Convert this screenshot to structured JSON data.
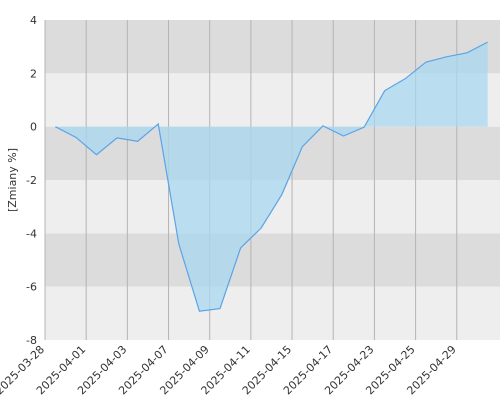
{
  "chart_data": {
    "type": "area",
    "y_label": "[Zmiany %]",
    "x": [
      0,
      1,
      2,
      3,
      4,
      5,
      6,
      7,
      8,
      9,
      10,
      11,
      12,
      13,
      14,
      15,
      16,
      17,
      18,
      19,
      20,
      21
    ],
    "series": [
      {
        "color": "#5aa4e6",
        "fill": "#a8d8ef",
        "values": [
          0,
          -0.4,
          -1.05,
          -0.42,
          -0.55,
          0.1,
          -4.4,
          -6.92,
          -6.82,
          -4.55,
          -3.8,
          -2.55,
          -0.75,
          0.03,
          -0.35,
          -0.02,
          1.35,
          1.8,
          2.42,
          2.62,
          2.77,
          3.17
        ]
      }
    ],
    "xlim": [
      -0.5,
      21.6
    ],
    "xticks": [
      {
        "value": -0.5,
        "label": "2025-03-28"
      },
      {
        "value": 1.5,
        "label": "2025-04-01"
      },
      {
        "value": 3.5,
        "label": "2025-04-03"
      },
      {
        "value": 5.5,
        "label": "2025-04-07"
      },
      {
        "value": 7.5,
        "label": "2025-04-09"
      },
      {
        "value": 9.5,
        "label": "2025-04-11"
      },
      {
        "value": 11.5,
        "label": "2025-04-15"
      },
      {
        "value": 13.5,
        "label": "2025-04-17"
      },
      {
        "value": 15.5,
        "label": "2025-04-23"
      },
      {
        "value": 17.5,
        "label": "2025-04-25"
      },
      {
        "value": 19.5,
        "label": "2025-04-29"
      }
    ],
    "ylim": [
      -8,
      4
    ],
    "yticks": [
      4,
      2,
      0,
      -2,
      -4,
      -6,
      -8
    ],
    "band_colors": [
      "#eeeeee",
      "#dcdcdc"
    ],
    "grid": true
  }
}
